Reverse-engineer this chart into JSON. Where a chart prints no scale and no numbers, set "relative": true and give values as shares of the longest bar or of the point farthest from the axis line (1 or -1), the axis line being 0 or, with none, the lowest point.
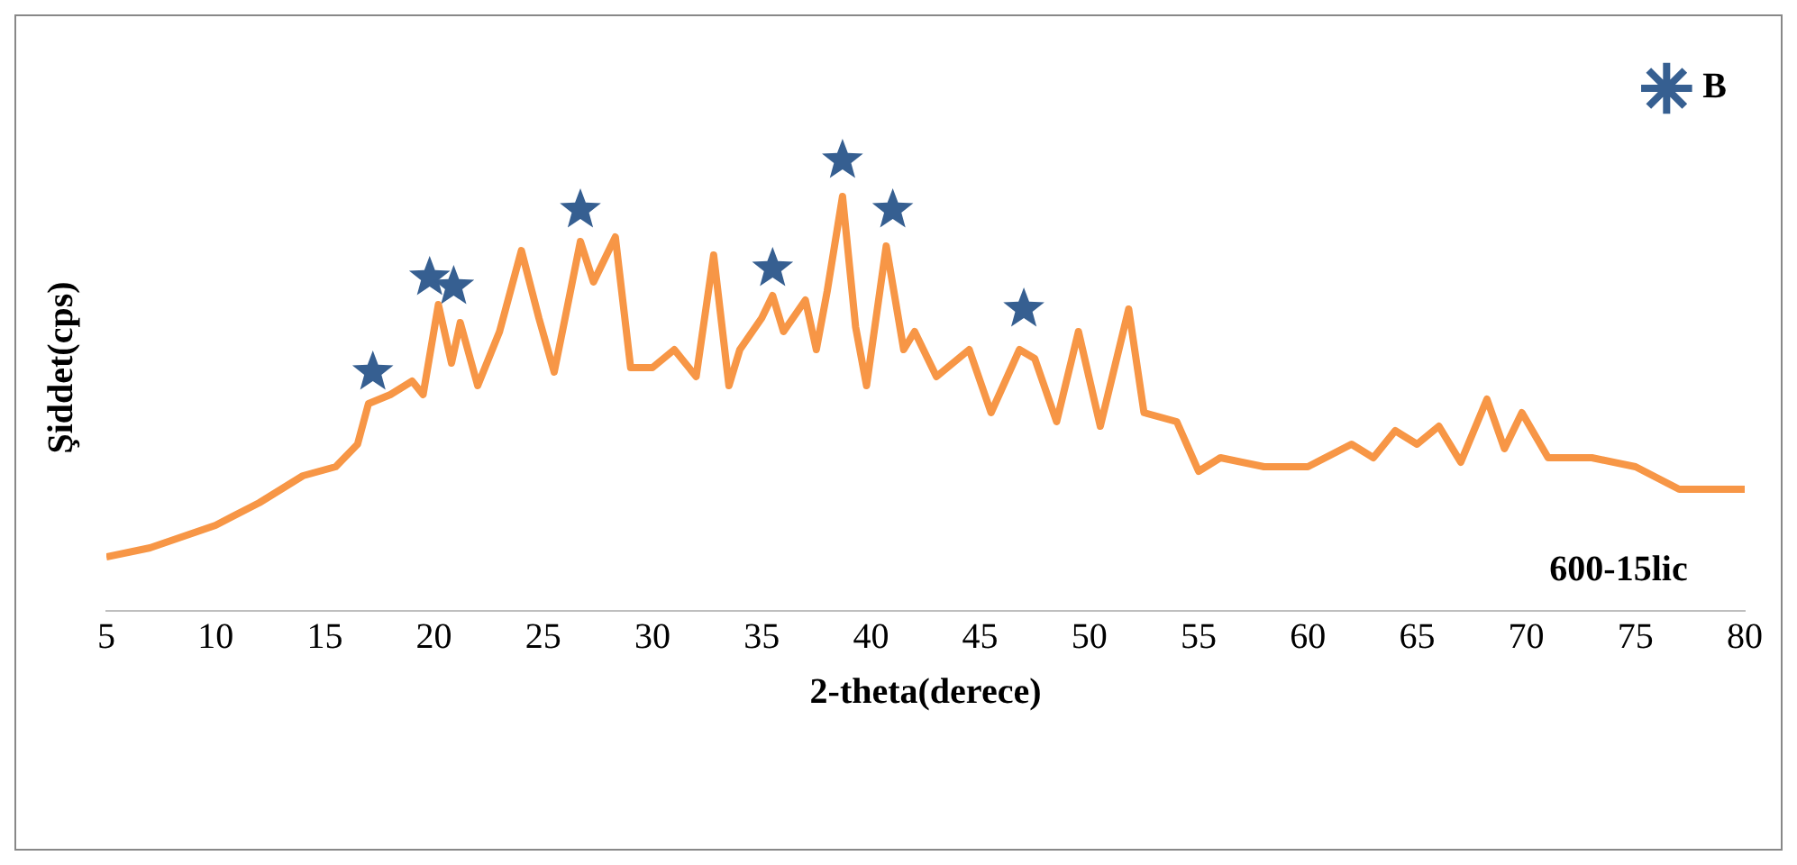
{
  "chart_data": {
    "type": "line",
    "relative": true,
    "xlabel": "2-theta(derece)",
    "ylabel": "Şiddet(cps)",
    "xlim": [
      5,
      80
    ],
    "xticks": [
      5,
      10,
      15,
      20,
      25,
      30,
      35,
      40,
      45,
      50,
      55,
      60,
      65,
      70,
      75,
      80
    ],
    "tick_labels": "x",
    "grid": false,
    "legend": "top right",
    "annotations": [
      "600-15lic"
    ],
    "series": [
      {
        "type": "line",
        "color": "#f79646",
        "marker": "none",
        "x": [
          5,
          7,
          10,
          12,
          14,
          15.5,
          16.5,
          17,
          18,
          19,
          19.5,
          20.2,
          20.8,
          21.2,
          22,
          23,
          24,
          24.8,
          25.5,
          26,
          26.7,
          27.3,
          28.3,
          29,
          30,
          31,
          32,
          32.8,
          33.5,
          34,
          35,
          35.5,
          36,
          37,
          37.5,
          38,
          38.7,
          39.3,
          39.8,
          40.7,
          41.5,
          42,
          43,
          44.5,
          45.5,
          46.8,
          47.5,
          48.5,
          49.5,
          50.5,
          51.8,
          52.5,
          54,
          55,
          56,
          58,
          60,
          62,
          63,
          64,
          65,
          66,
          67,
          68.2,
          69,
          69.8,
          71,
          73,
          75,
          77,
          80
        ],
        "values": [
          0.12,
          0.14,
          0.19,
          0.24,
          0.3,
          0.32,
          0.37,
          0.46,
          0.48,
          0.51,
          0.48,
          0.68,
          0.55,
          0.64,
          0.5,
          0.62,
          0.8,
          0.65,
          0.53,
          0.65,
          0.82,
          0.73,
          0.83,
          0.54,
          0.54,
          0.58,
          0.52,
          0.79,
          0.5,
          0.58,
          0.65,
          0.7,
          0.62,
          0.69,
          0.58,
          0.71,
          0.92,
          0.63,
          0.5,
          0.81,
          0.58,
          0.62,
          0.52,
          0.58,
          0.44,
          0.58,
          0.56,
          0.42,
          0.62,
          0.41,
          0.67,
          0.44,
          0.42,
          0.31,
          0.34,
          0.32,
          0.32,
          0.37,
          0.34,
          0.4,
          0.37,
          0.41,
          0.33,
          0.47,
          0.36,
          0.44,
          0.34,
          0.34,
          0.32,
          0.27,
          0.27
        ]
      },
      {
        "type": "scatter",
        "name": "B",
        "color": "#365f91",
        "marker": "star",
        "x": [
          17.2,
          19.8,
          20.9,
          26.7,
          35.5,
          38.7,
          41,
          47
        ],
        "values": [
          0.53,
          0.74,
          0.72,
          0.89,
          0.76,
          1,
          0.89,
          0.67
        ]
      }
    ]
  }
}
